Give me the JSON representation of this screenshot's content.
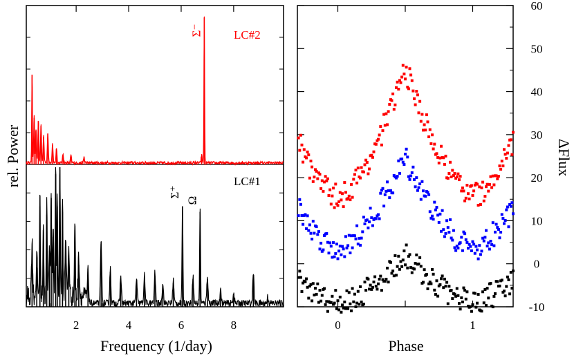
{
  "chart_data": [
    {
      "type": "line",
      "panel": "periodogram",
      "xlabel": "Frequency (1/day)",
      "ylabel": "rel. Power",
      "xlim": [
        0.1,
        9.9
      ],
      "xticks": [
        2,
        4,
        6,
        8
      ],
      "xtick_labels": [
        "2",
        "4",
        "6",
        "8"
      ],
      "series": [
        {
          "name": "LC#2",
          "label": "LC#2",
          "color": "#ff0000",
          "ylim": [
            0,
            1.0
          ],
          "peaks": [
            {
              "x": 0.32,
              "y": 0.58
            },
            {
              "x": 0.4,
              "y": 0.3
            },
            {
              "x": 0.47,
              "y": 0.22
            },
            {
              "x": 0.56,
              "y": 0.28
            },
            {
              "x": 0.66,
              "y": 0.25
            },
            {
              "x": 0.76,
              "y": 0.18
            },
            {
              "x": 0.92,
              "y": 0.2
            },
            {
              "x": 1.1,
              "y": 0.12
            },
            {
              "x": 1.25,
              "y": 0.1
            },
            {
              "x": 1.5,
              "y": 0.06
            },
            {
              "x": 1.8,
              "y": 0.05
            },
            {
              "x": 2.3,
              "y": 0.04
            },
            {
              "x": 6.78,
              "y": 0.05
            },
            {
              "x": 6.88,
              "y": 0.95
            }
          ],
          "annotations": [
            {
              "text": "Σ⁻",
              "x": 6.88
            }
          ]
        },
        {
          "name": "LC#1",
          "label": "LC#1",
          "color": "#000000",
          "ylim": [
            0,
            1.0
          ],
          "peaks": [
            {
              "x": 0.32,
              "y": 0.38
            },
            {
              "x": 0.5,
              "y": 0.28
            },
            {
              "x": 0.62,
              "y": 0.72
            },
            {
              "x": 0.75,
              "y": 0.55
            },
            {
              "x": 0.88,
              "y": 0.66
            },
            {
              "x": 0.98,
              "y": 0.4
            },
            {
              "x": 1.05,
              "y": 0.78
            },
            {
              "x": 1.12,
              "y": 0.5
            },
            {
              "x": 1.22,
              "y": 0.95
            },
            {
              "x": 1.28,
              "y": 0.72
            },
            {
              "x": 1.38,
              "y": 1.0
            },
            {
              "x": 1.48,
              "y": 0.68
            },
            {
              "x": 1.6,
              "y": 0.45
            },
            {
              "x": 1.72,
              "y": 0.35
            },
            {
              "x": 1.95,
              "y": 0.55
            },
            {
              "x": 2.1,
              "y": 0.3
            },
            {
              "x": 2.45,
              "y": 0.25
            },
            {
              "x": 2.95,
              "y": 0.45
            },
            {
              "x": 3.3,
              "y": 0.25
            },
            {
              "x": 3.7,
              "y": 0.2
            },
            {
              "x": 4.3,
              "y": 0.18
            },
            {
              "x": 4.6,
              "y": 0.2
            },
            {
              "x": 5.0,
              "y": 0.22
            },
            {
              "x": 5.3,
              "y": 0.15
            },
            {
              "x": 5.7,
              "y": 0.17
            },
            {
              "x": 6.05,
              "y": 0.72
            },
            {
              "x": 6.45,
              "y": 0.2
            },
            {
              "x": 6.72,
              "y": 0.68
            },
            {
              "x": 7.0,
              "y": 0.2
            },
            {
              "x": 7.5,
              "y": 0.1
            },
            {
              "x": 8.0,
              "y": 0.08
            },
            {
              "x": 8.75,
              "y": 0.23
            },
            {
              "x": 9.3,
              "y": 0.05
            }
          ],
          "annotations": [
            {
              "text": "Σ⁺",
              "x": 6.05
            },
            {
              "text": "Ω",
              "x": 6.72
            }
          ]
        }
      ]
    },
    {
      "type": "scatter",
      "panel": "phase",
      "xlabel": "Phase",
      "ylabel": "ΔFlux",
      "xlim": [
        -0.3,
        1.3
      ],
      "ylim": [
        -10,
        60
      ],
      "xticks": [
        0,
        0.5,
        1
      ],
      "xtick_labels": [
        "0",
        "1"
      ],
      "xtick_label_values": [
        0,
        1
      ],
      "yticks": [
        -10,
        0,
        10,
        20,
        30,
        40,
        50,
        60
      ],
      "ytick_labels": [
        "-10",
        "0",
        "10",
        "20",
        "30",
        "40",
        "50",
        "60"
      ],
      "series": [
        {
          "name": "top",
          "color": "#ff0000",
          "offset": 26,
          "amplitude": 30,
          "points_per_cycle": 120
        },
        {
          "name": "middle",
          "color": "#0000ff",
          "offset": 11,
          "amplitude": 21,
          "points_per_cycle": 120
        },
        {
          "name": "bottom",
          "color": "#000000",
          "offset": -5,
          "amplitude": 11,
          "points_per_cycle": 120
        }
      ]
    }
  ]
}
